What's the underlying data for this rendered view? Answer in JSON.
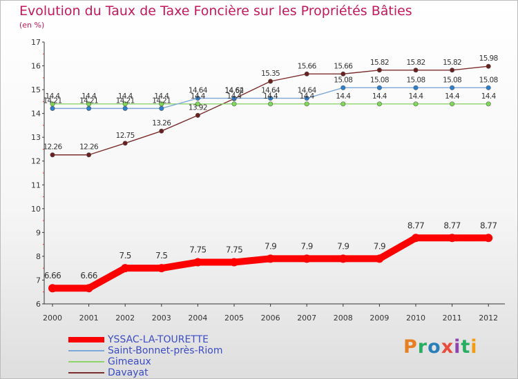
{
  "page": {
    "title": "Evolution du Taux de Taxe Foncière sur les Propriétés Bâties",
    "unit": "(en %)"
  },
  "chart_data": {
    "type": "line",
    "title": "Evolution du Taux de Taxe Foncière sur les Propriétés Bâties",
    "ylabel": "(en %)",
    "xlabel": "",
    "categories": [
      "2000",
      "2001",
      "2002",
      "2003",
      "2004",
      "2005",
      "2006",
      "2007",
      "2008",
      "2009",
      "2010",
      "2011",
      "2012"
    ],
    "ylim": [
      6,
      17
    ],
    "yticks": [
      6,
      7,
      8,
      9,
      10,
      11,
      12,
      13,
      14,
      15,
      16,
      17
    ],
    "legend_position": "bottom-left",
    "series": [
      {
        "name": "YSSAC-LA-TOURETTE",
        "color": "#ff0000",
        "marker_color": "#ff0000",
        "values": [
          6.66,
          6.66,
          7.5,
          7.5,
          7.75,
          7.75,
          7.9,
          7.9,
          7.9,
          7.9,
          8.77,
          8.77,
          8.77
        ],
        "labels": [
          "6.66",
          "6.66",
          "7.5",
          "7.5",
          "7.75",
          "7.75",
          "7.9",
          "7.9",
          "7.9",
          "7.9",
          "8.77",
          "8.77",
          "8.77"
        ]
      },
      {
        "name": "Saint-Bonnet-près-Riom",
        "color": "#7da7d9",
        "marker_color": "#2a7fcf",
        "values": [
          14.21,
          14.21,
          14.21,
          14.21,
          14.64,
          14.64,
          14.64,
          14.64,
          15.08,
          15.08,
          15.08,
          15.08,
          15.08
        ],
        "labels": [
          "14.21",
          "14.21",
          "14.21",
          "14.21",
          "14.64",
          "14.64",
          "14.64",
          "14.64",
          "15.08",
          "15.08",
          "15.08",
          "15.08",
          "15.08"
        ]
      },
      {
        "name": "Gimeaux",
        "color": "#8cd46a",
        "marker_color": "#7ed957",
        "values": [
          14.4,
          14.4,
          14.4,
          14.4,
          14.4,
          14.4,
          14.4,
          14.4,
          14.4,
          14.4,
          14.4,
          14.4,
          14.4
        ],
        "labels": [
          "14.4",
          "14.4",
          "14.4",
          "14.4",
          "14.4",
          "14.4",
          "14.4",
          "14.4",
          "14.4",
          "14.4",
          "14.4",
          "14.4",
          "14.4"
        ]
      },
      {
        "name": "Davayat",
        "color": "#7b2c2c",
        "marker_color": "#6b1f1f",
        "values": [
          12.26,
          12.26,
          12.75,
          13.26,
          13.92,
          14.62,
          15.35,
          15.66,
          15.66,
          15.82,
          15.82,
          15.82,
          15.98
        ],
        "labels": [
          "12.26",
          "12.26",
          "12.75",
          "13.26",
          "13.92",
          "14.62",
          "15.35",
          "15.66",
          "15.66",
          "15.82",
          "15.82",
          "15.82",
          "15.98"
        ]
      }
    ]
  },
  "logo": {
    "text": "Proxiti",
    "letters": [
      {
        "ch": "P",
        "color": "#e67e22"
      },
      {
        "ch": "r",
        "color": "#27ae60"
      },
      {
        "ch": "o",
        "color": "#2980b9"
      },
      {
        "ch": "x",
        "color": "#e74c3c"
      },
      {
        "ch": "i",
        "color": "#8e44ad"
      },
      {
        "ch": "t",
        "color": "#27ae60"
      },
      {
        "ch": "i",
        "color": "#f39c12"
      }
    ]
  }
}
